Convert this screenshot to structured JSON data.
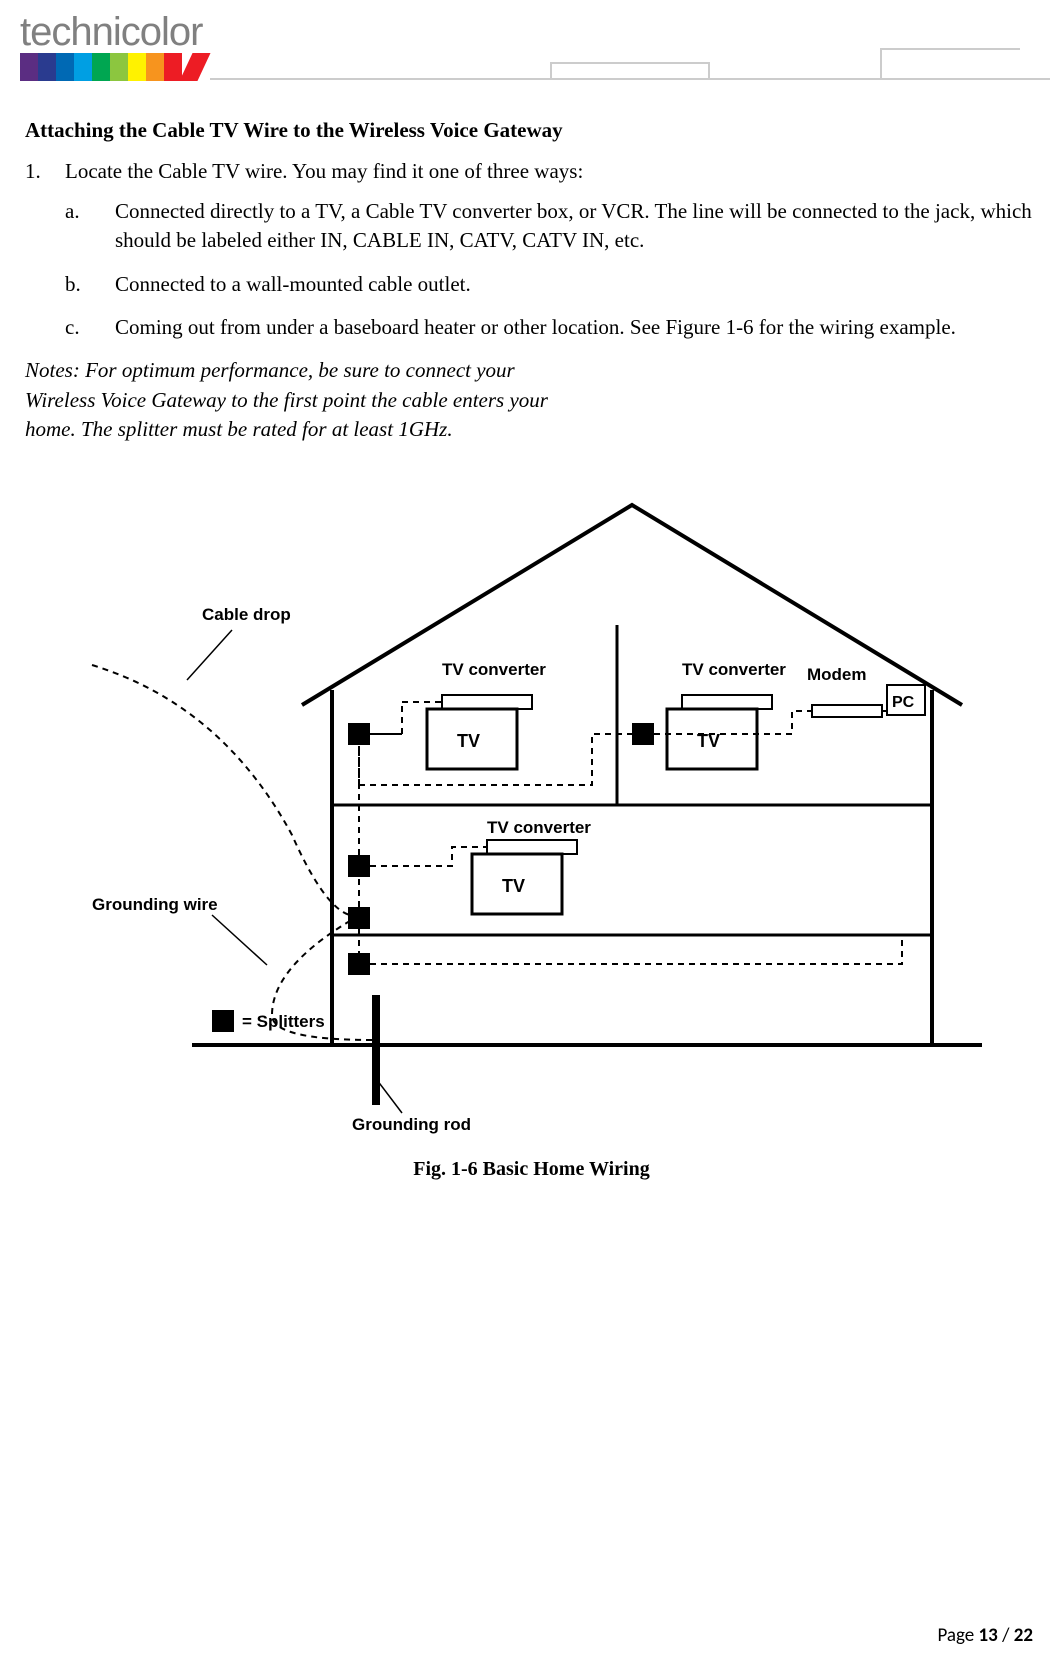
{
  "logo": {
    "text": "technicolor",
    "bar_colors": [
      "#5b2d82",
      "#2a3b8f",
      "#0069b4",
      "#009fe3",
      "#00a651",
      "#8cc63f",
      "#fff200",
      "#f7941e",
      "#ed1c24",
      "#ed1c24"
    ]
  },
  "section_title": "Attaching the Cable TV Wire to the Wireless Voice Gateway",
  "step1_num": "1.",
  "step1_text": "Locate the Cable TV wire. You may find it one of three ways:",
  "sub_a_num": "a.",
  "sub_a_text": "Connected directly to a TV, a Cable TV converter box, or VCR. The line will be connected to the jack, which should be labeled either IN, CABLE IN, CATV, CATV IN, etc.",
  "sub_b_num": "b.",
  "sub_b_text": "Connected to a wall-mounted cable outlet.",
  "sub_c_num": "c.",
  "sub_c_text": "Coming out from under a baseboard heater or other location. See Figure 1-6 for the wiring example.",
  "notes_text": "Notes:  For optimum performance, be sure to connect your Wireless Voice Gateway to the first point the cable enters your home. The splitter must be rated for at least 1GHz.",
  "figure": {
    "labels": {
      "cable_drop": "Cable drop",
      "tv_converter": "TV converter",
      "modem": "Modem",
      "pc": "PC",
      "tv": "TV",
      "grounding_wire": "Grounding wire",
      "splitters_legend": "= Splitters",
      "grounding_rod": "Grounding rod"
    },
    "caption": "Fig. 1-6 Basic Home Wiring",
    "colors": {
      "stroke": "#000000",
      "fill_box": "#ffffff",
      "fill_black": "#000000"
    }
  },
  "footer": {
    "page_label": "Page ",
    "current": "13",
    "sep": " / ",
    "total": "22"
  }
}
